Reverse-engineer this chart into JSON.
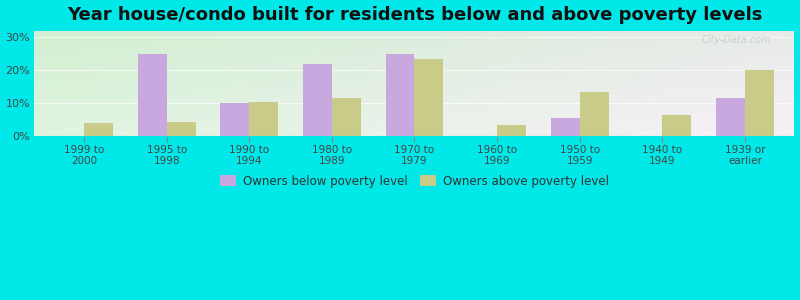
{
  "title": "Year house/condo built for residents below and above poverty levels",
  "categories": [
    "1999 to\n2000",
    "1995 to\n1998",
    "1990 to\n1994",
    "1980 to\n1989",
    "1970 to\n1979",
    "1960 to\n1969",
    "1950 to\n1959",
    "1940 to\n1949",
    "1939 or\nearlier"
  ],
  "below_poverty": [
    0,
    25.0,
    10.0,
    22.0,
    25.0,
    0,
    5.5,
    0,
    11.5
  ],
  "above_poverty": [
    4.0,
    4.5,
    10.5,
    11.5,
    23.5,
    3.5,
    13.5,
    6.5,
    20.0
  ],
  "below_color": "#c9a8e0",
  "above_color": "#c8cc88",
  "background_outer": "#00e8e8",
  "yticks": [
    0,
    10,
    20,
    30
  ],
  "ylim": [
    0,
    32
  ],
  "bar_width": 0.35,
  "title_fontsize": 13,
  "legend_below_label": "Owners below poverty level",
  "legend_above_label": "Owners above poverty level",
  "watermark": "City-Data.com"
}
